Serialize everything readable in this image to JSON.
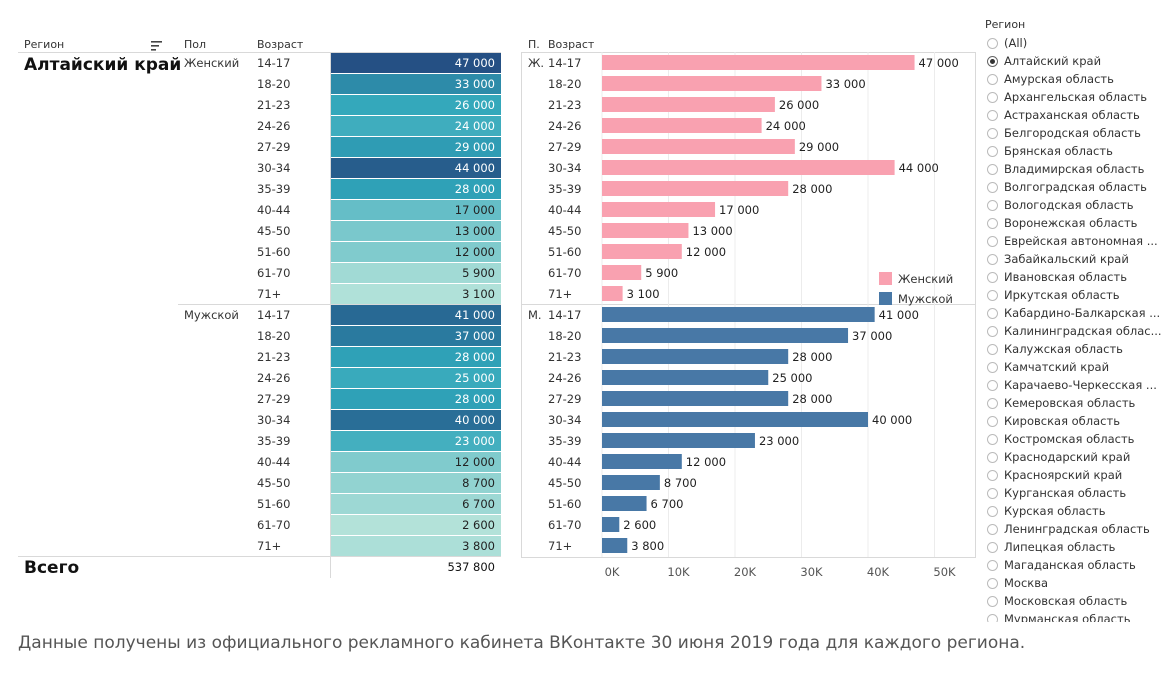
{
  "table": {
    "headers": {
      "region": "Регион",
      "sex": "Пол",
      "age": "Возраст"
    },
    "region_value": "Алтайский край",
    "total_label": "Всего",
    "total_value": "537 800"
  },
  "bars_header": {
    "sex": "П.",
    "age": "Возраст"
  },
  "legend": {
    "female": "Женский",
    "male": "Мужской"
  },
  "filter": {
    "title": "Регион",
    "selected": "Алтайский край",
    "options": [
      "(All)",
      "Алтайский край",
      "Амурская область",
      "Архангельская область",
      "Астраханская область",
      "Белгородская область",
      "Брянская область",
      "Владимирская область",
      "Волгоградская область",
      "Вологодская область",
      "Воронежская область",
      "Еврейская автономная ...",
      "Забайкальский край",
      "Ивановская область",
      "Иркутская область",
      "Кабардино-Балкарская ...",
      "Калининградская облас...",
      "Калужская область",
      "Камчатский край",
      "Карачаево-Черкесская ...",
      "Кемеровская область",
      "Кировская область",
      "Костромская область",
      "Краснодарский край",
      "Красноярский край",
      "Курганская область",
      "Курская область",
      "Ленинградская область",
      "Липецкая область",
      "Магаданская область",
      "Москва",
      "Московская область",
      "Мурманская область"
    ]
  },
  "caption": "Данные получены из официального рекламного кабинета ВКонтакте 30 июня 2019 года для каждого региона.",
  "colors": {
    "female": "#f9a1b0",
    "male": "#4878a6"
  },
  "chart_data": {
    "type": "bar",
    "categories": [
      "14-17",
      "18-20",
      "21-23",
      "24-26",
      "27-29",
      "30-34",
      "35-39",
      "40-44",
      "45-50",
      "51-60",
      "61-70",
      "71+"
    ],
    "series": [
      {
        "name": "Женский",
        "short": "Ж.",
        "values": [
          47000,
          33000,
          26000,
          24000,
          29000,
          44000,
          28000,
          17000,
          13000,
          12000,
          5900,
          3100
        ],
        "labels": [
          "47 000",
          "33 000",
          "26 000",
          "24 000",
          "29 000",
          "44 000",
          "28 000",
          "17 000",
          "13 000",
          "12 000",
          "5 900",
          "3 100"
        ]
      },
      {
        "name": "Мужской",
        "short": "М.",
        "values": [
          41000,
          37000,
          28000,
          25000,
          28000,
          40000,
          23000,
          12000,
          8700,
          6700,
          2600,
          3800
        ],
        "labels": [
          "41 000",
          "37 000",
          "28 000",
          "25 000",
          "28 000",
          "40 000",
          "23 000",
          "12 000",
          "8 700",
          "6 700",
          "2 600",
          "3 800"
        ]
      }
    ],
    "xaxis_ticks": [
      "0K",
      "10K",
      "20K",
      "30K",
      "40K",
      "50K"
    ],
    "xlim": [
      0,
      55000
    ],
    "grid": true,
    "legend_position": "right"
  }
}
